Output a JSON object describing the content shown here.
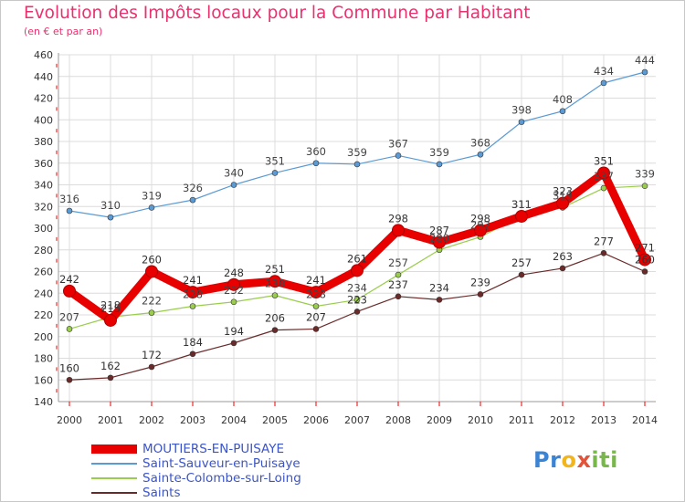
{
  "chart_data": {
    "type": "line",
    "title": "Evolution des Impôts locaux pour la Commune par Habitant",
    "subtitle": "(en € et par an)",
    "xlabel": "",
    "ylabel": "",
    "ylim": [
      140,
      460
    ],
    "yticks": [
      140,
      160,
      180,
      200,
      220,
      240,
      260,
      280,
      300,
      320,
      340,
      360,
      380,
      400,
      420,
      440,
      460
    ],
    "grid": true,
    "legend_position": "bottom-left",
    "categories": [
      "2000",
      "2001",
      "2002",
      "2003",
      "2004",
      "2005",
      "2006",
      "2007",
      "2008",
      "2009",
      "2010",
      "2011",
      "2012",
      "2013",
      "2014"
    ],
    "series": [
      {
        "name": "MOUTIERS-EN-PUISAYE",
        "color": "#e80000",
        "values": [
          242,
          215,
          260,
          241,
          248,
          251,
          241,
          261,
          298,
          287,
          298,
          311,
          323,
          351,
          271
        ],
        "labels": [
          "242",
          "215",
          "260",
          "241",
          "248",
          "251",
          "241",
          "261",
          "298",
          "287",
          "298",
          "311",
          "323",
          "351",
          "271"
        ]
      },
      {
        "name": "Saint-Sauveur-en-Puisaye",
        "color": "#5b9bd5",
        "values": [
          316,
          310,
          319,
          326,
          340,
          351,
          360,
          359,
          367,
          359,
          368,
          398,
          408,
          434,
          444
        ],
        "labels": [
          "316",
          "310",
          "319",
          "326",
          "340",
          "351",
          "360",
          "359",
          "367",
          "359",
          "368",
          "398",
          "408",
          "434",
          "444"
        ]
      },
      {
        "name": "Sainte-Colombe-sur-Loing",
        "color": "#9acd4c",
        "values": [
          207,
          218,
          222,
          228,
          232,
          238,
          228,
          234,
          257,
          280,
          292,
          311,
          319,
          337,
          339
        ],
        "labels": [
          "207",
          "218",
          "222",
          "228",
          "232",
          "238",
          "228",
          "234",
          "257",
          "280",
          "292",
          "311",
          "319",
          "337",
          "339"
        ]
      },
      {
        "name": "Saints",
        "color": "#6b2a2a",
        "values": [
          160,
          162,
          172,
          184,
          194,
          206,
          207,
          223,
          237,
          234,
          239,
          257,
          263,
          277,
          260
        ],
        "labels": [
          "160",
          "162",
          "172",
          "184",
          "194",
          "206",
          "207",
          "223",
          "237",
          "234",
          "239",
          "257",
          "263",
          "277",
          "260"
        ]
      }
    ]
  },
  "logo": {
    "letters": [
      "Pr",
      "o",
      "x",
      "iti"
    ]
  }
}
